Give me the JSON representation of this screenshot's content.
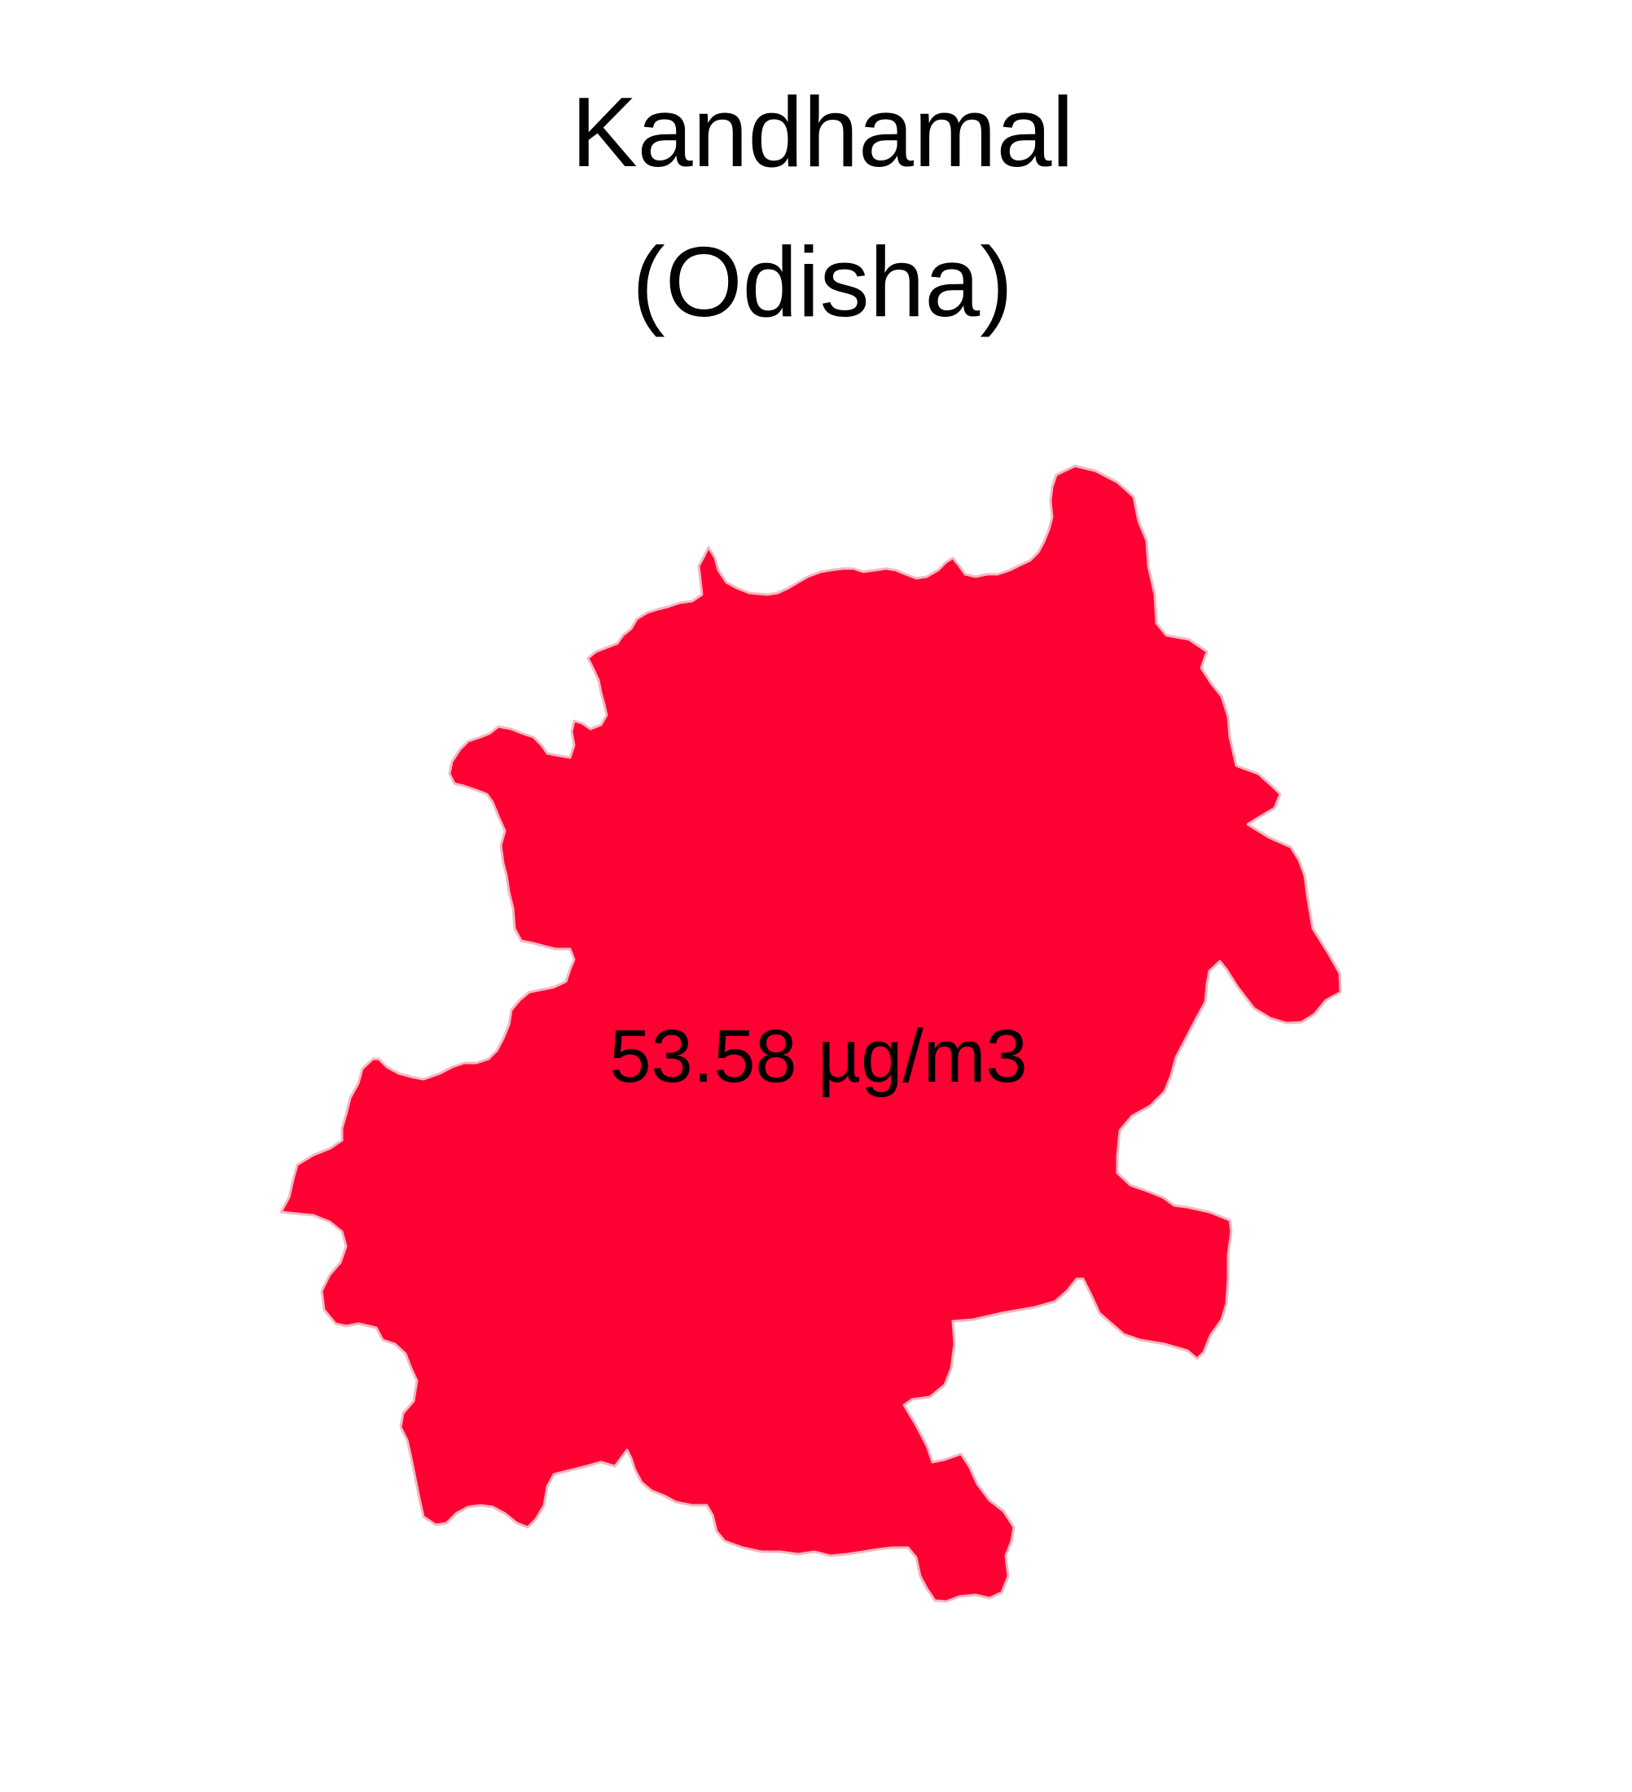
{
  "title": {
    "line1": "Kandhamal",
    "line2": "(Odisha)"
  },
  "map": {
    "region_name": "Kandhamal",
    "value_label": "53.58 µg/m3",
    "fill_color": "#FF0033",
    "border_color": "#F2B8C0",
    "background_color": "#FFFFFF"
  }
}
